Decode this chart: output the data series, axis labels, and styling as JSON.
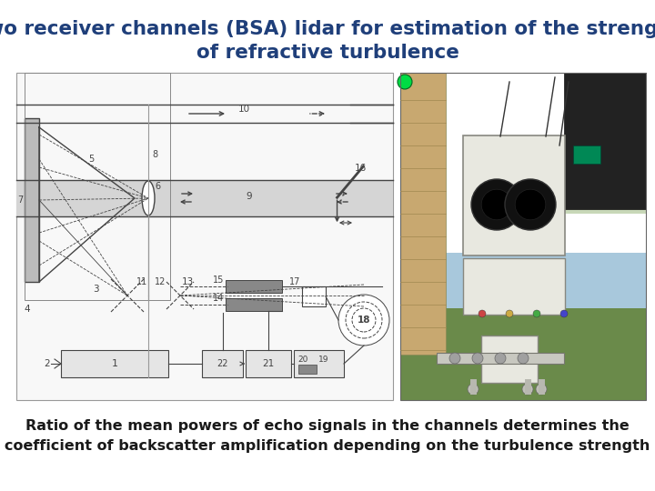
{
  "title_line1": "Two receiver channels (BSA) lidar for estimation of the strength",
  "title_line2": "of refractive turbulence",
  "title_color": "#1f3f7a",
  "title_fontsize": 15.5,
  "caption_line1": "Ratio of the mean powers of echo signals in the channels determines the",
  "caption_line2": "coefficient of backscatter amplification depending on the turbulence strength",
  "caption_color": "#1a1a1a",
  "caption_fontsize": 11.5,
  "bg_color": "#ffffff",
  "lc": "#444444",
  "lw": 1.0
}
